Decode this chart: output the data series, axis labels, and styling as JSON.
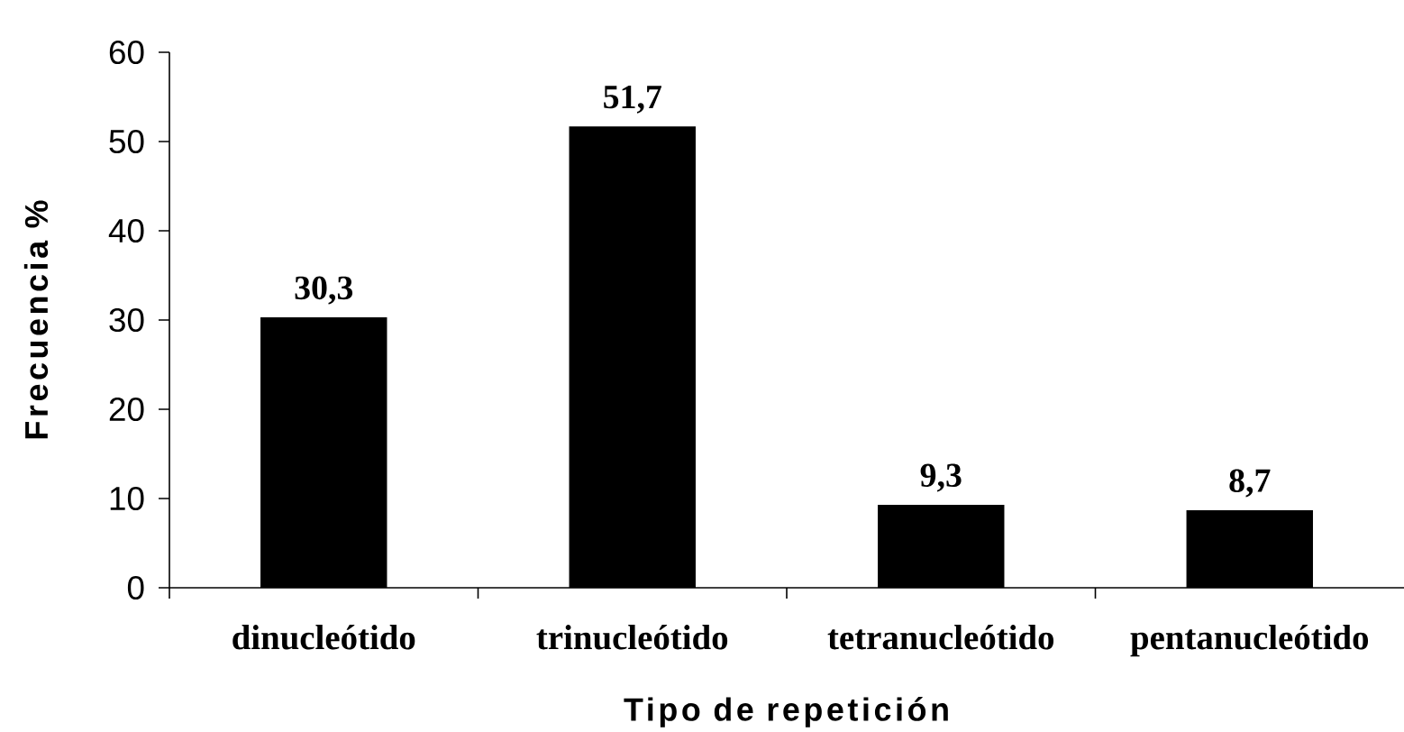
{
  "chart_data": {
    "type": "bar",
    "xlabel": "Tipo de repetición",
    "ylabel": "Frecuencia %",
    "categories": [
      "dinucleótido",
      "trinucleótido",
      "tetranucleótido",
      "pentanucleótido"
    ],
    "values": [
      30.3,
      51.7,
      9.3,
      8.7
    ],
    "value_labels": [
      "30,3",
      "51,7",
      "9,3",
      "8,7"
    ],
    "color": "#000000",
    "ylim": [
      0,
      60
    ],
    "yticks": [
      0,
      10,
      20,
      30,
      40,
      50,
      60
    ]
  }
}
